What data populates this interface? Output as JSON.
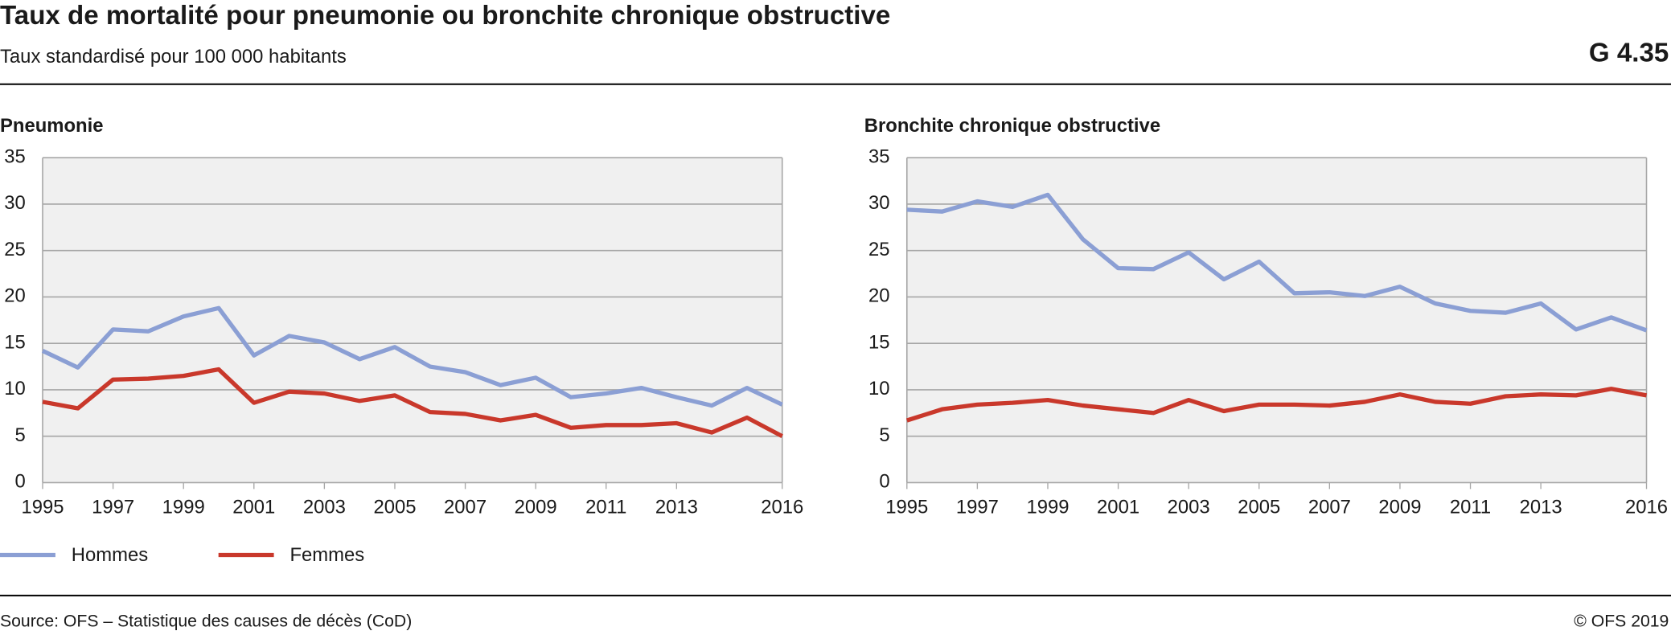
{
  "title": "Taux de mortalité pour pneumonie ou bronchite chronique obstructive",
  "subtitle": "Taux standardisé pour 100 000 habitants",
  "code": "G 4.35",
  "source": "Source: OFS – Statistique des causes de décès (CoD)",
  "copyright": "© OFS 2019",
  "chart_data": [
    {
      "type": "line",
      "title": "Pneumonie",
      "x": [
        1995,
        1996,
        1997,
        1998,
        1999,
        2000,
        2001,
        2002,
        2003,
        2004,
        2005,
        2006,
        2007,
        2008,
        2009,
        2010,
        2011,
        2012,
        2013,
        2014,
        2015,
        2016
      ],
      "xlim": [
        1995,
        2016
      ],
      "xticks": [
        1995,
        1997,
        1999,
        2001,
        2003,
        2005,
        2007,
        2009,
        2011,
        2013,
        2016
      ],
      "ylim": [
        0,
        35
      ],
      "yticks": [
        0,
        5,
        10,
        15,
        20,
        25,
        30,
        35
      ],
      "grid": true,
      "series": [
        {
          "name": "Hommes",
          "color": "#8b9fd4",
          "values": [
            14.2,
            12.4,
            16.5,
            16.3,
            17.9,
            18.8,
            13.7,
            15.8,
            15.1,
            13.3,
            14.6,
            12.5,
            11.9,
            10.5,
            11.3,
            9.2,
            9.6,
            10.2,
            9.2,
            8.3,
            10.2,
            8.4
          ]
        },
        {
          "name": "Femmes",
          "color": "#c9382b",
          "values": [
            8.7,
            8.0,
            11.1,
            11.2,
            11.5,
            12.2,
            8.6,
            9.8,
            9.6,
            8.8,
            9.4,
            7.6,
            7.4,
            6.7,
            7.3,
            5.9,
            6.2,
            6.2,
            6.4,
            5.4,
            7.0,
            5.0
          ]
        }
      ]
    },
    {
      "type": "line",
      "title": "Bronchite chronique obstructive",
      "x": [
        1995,
        1996,
        1997,
        1998,
        1999,
        2000,
        2001,
        2002,
        2003,
        2004,
        2005,
        2006,
        2007,
        2008,
        2009,
        2010,
        2011,
        2012,
        2013,
        2014,
        2015,
        2016
      ],
      "xlim": [
        1995,
        2016
      ],
      "xticks": [
        1995,
        1997,
        1999,
        2001,
        2003,
        2005,
        2007,
        2009,
        2011,
        2013,
        2016
      ],
      "ylim": [
        0,
        35
      ],
      "yticks": [
        0,
        5,
        10,
        15,
        20,
        25,
        30,
        35
      ],
      "grid": true,
      "series": [
        {
          "color": "#8b9fd4",
          "values": [
            29.4,
            29.2,
            30.3,
            29.7,
            31.0,
            26.2,
            23.1,
            23.0,
            24.8,
            21.9,
            23.8,
            20.4,
            20.5,
            20.1,
            21.1,
            19.3,
            18.5,
            18.3,
            19.3,
            16.5,
            17.8,
            16.4
          ]
        },
        {
          "color": "#c9382b",
          "values": [
            6.7,
            7.9,
            8.4,
            8.6,
            8.9,
            8.3,
            7.9,
            7.5,
            8.9,
            7.7,
            8.4,
            8.4,
            8.3,
            8.7,
            9.5,
            8.7,
            8.5,
            9.3,
            9.5,
            9.4,
            10.1,
            9.4
          ]
        }
      ]
    }
  ]
}
